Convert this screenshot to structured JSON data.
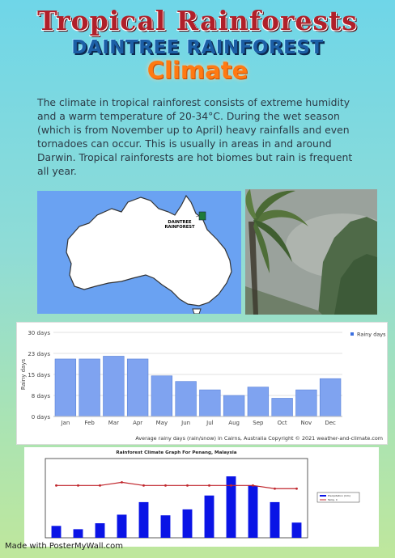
{
  "header": {
    "title": "Tropical Rainforests",
    "subtitle": "DAINTREE RAINFOREST",
    "heading": "Climate"
  },
  "intro": "The climate in tropical rainforest consists of extreme humidity and a warm temperature of 20-34°C. During the wet season (which  is from November up to April) heavy rainfalls and even tornadoes can occur. This is usually in areas in and around Darwin. Tropical rainforests are hot biomes but rain is frequent all year.",
  "map": {
    "label_line1": "DAINTREE",
    "label_line2": "RAINFOREST",
    "ocean_color": "#6aa2f2",
    "marker_color": "#1e7a3a"
  },
  "chart_data": [
    {
      "type": "bar",
      "title": "",
      "ylabel": "Rainy days",
      "categories": [
        "Jan",
        "Feb",
        "Mar",
        "Apr",
        "May",
        "Jun",
        "Jul",
        "Aug",
        "Sep",
        "Oct",
        "Nov",
        "Dec"
      ],
      "series": [
        {
          "name": "Rainy days",
          "values": [
            20.5,
            20.5,
            21.5,
            20.5,
            14.5,
            12.5,
            9.5,
            7.5,
            10.5,
            6.5,
            9.5,
            13.5
          ]
        }
      ],
      "yticks": [
        "0 days",
        "8 days",
        "15 days",
        "23 days",
        "30 days"
      ],
      "ylim": [
        0,
        30
      ],
      "caption": "Average rainy days (rain/snow) in Cairns, Australia   Copyright © 2021  weather-and-climate.com",
      "legend": "top-right",
      "grid": true
    },
    {
      "type": "bar",
      "title": "Rainforest Climate Graph For Penang, Malaysia",
      "categories": [
        "",
        "",
        "",
        "",
        "",
        "",
        "",
        "",
        "",
        "",
        "",
        ""
      ],
      "series": [
        {
          "name": "Precipitation (mm)",
          "values": [
            90,
            65,
            110,
            175,
            270,
            170,
            215,
            320,
            465,
            395,
            270,
            115
          ]
        },
        {
          "name": "Temp. C",
          "values": [
            26.5,
            26.5,
            26.5,
            27.5,
            26.5,
            26.5,
            26.5,
            26.5,
            26.5,
            26.5,
            25.5,
            25.5
          ]
        }
      ],
      "ylim_left": [
        0,
        600
      ],
      "ylim_right": [
        10,
        35
      ],
      "legend": "right"
    }
  ],
  "footer": "Made with PosterMyWall.com"
}
